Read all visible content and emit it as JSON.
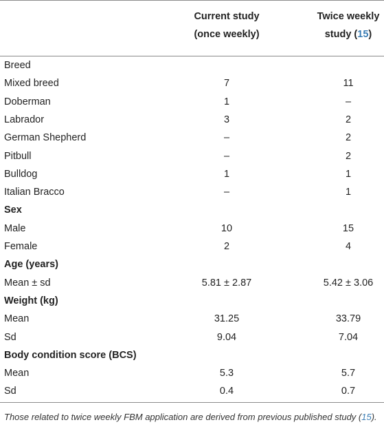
{
  "header": {
    "col1": [
      "Current study",
      "(once weekly)"
    ],
    "col2_line1": "Twice weekly",
    "col2_line2_text": "study (",
    "col2_line2_ref": "15",
    "col2_line2_close": ")"
  },
  "rows": [
    {
      "label": "Breed",
      "c1": "",
      "c2": "",
      "section": false
    },
    {
      "label": "Mixed breed",
      "c1": "7",
      "c2": "11",
      "section": false
    },
    {
      "label": "Doberman",
      "c1": "1",
      "c2": "–",
      "section": false
    },
    {
      "label": "Labrador",
      "c1": "3",
      "c2": "2",
      "section": false
    },
    {
      "label": "German Shepherd",
      "c1": "–",
      "c2": "2",
      "section": false
    },
    {
      "label": "Pitbull",
      "c1": "–",
      "c2": "2",
      "section": false
    },
    {
      "label": "Bulldog",
      "c1": "1",
      "c2": "1",
      "section": false
    },
    {
      "label": "Italian Bracco",
      "c1": "–",
      "c2": "1",
      "section": false
    },
    {
      "label": "Sex",
      "c1": "",
      "c2": "",
      "section": true
    },
    {
      "label": "Male",
      "c1": "10",
      "c2": "15",
      "section": false
    },
    {
      "label": "Female",
      "c1": "2",
      "c2": "4",
      "section": false
    },
    {
      "label": "Age (years)",
      "c1": "",
      "c2": "",
      "section": true
    },
    {
      "label": "Mean ± sd",
      "c1": "5.81 ± 2.87",
      "c2": "5.42 ± 3.06",
      "section": false
    },
    {
      "label": "Weight (kg)",
      "c1": "",
      "c2": "",
      "section": true
    },
    {
      "label": "Mean",
      "c1": "31.25",
      "c2": "33.79",
      "section": false
    },
    {
      "label": "Sd",
      "c1": "9.04",
      "c2": "7.04",
      "section": false
    },
    {
      "label": "Body condition score (BCS)",
      "c1": "",
      "c2": "",
      "section": true
    },
    {
      "label": "Mean",
      "c1": "5.3",
      "c2": "5.7",
      "section": false
    },
    {
      "label": "Sd",
      "c1": "0.4",
      "c2": "0.7",
      "section": false
    }
  ],
  "footnote": {
    "text_before": "Those related to twice weekly FBM application are derived from previous published study (",
    "ref": "15",
    "text_after": ")."
  }
}
